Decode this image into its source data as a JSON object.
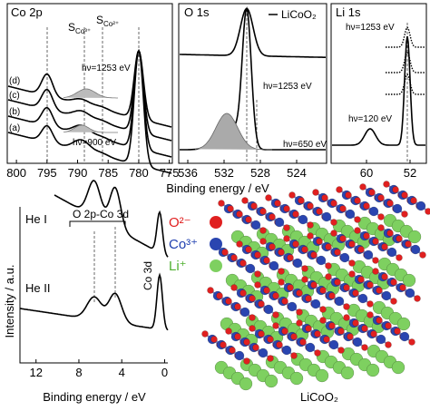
{
  "panels": [
    {
      "title": "Co 2p",
      "xlim": [
        801.5,
        774.5
      ],
      "xticks": [
        800,
        795,
        790,
        785,
        780,
        775
      ],
      "traces": [
        "(d)",
        "(c)",
        "(b)",
        "(a)"
      ],
      "energy_top": "hν=1253 eV",
      "energy_bottom": "hν=900 eV",
      "sat1": "S",
      "sat1_sub": "Co³⁺",
      "sat2": "S",
      "sat2_sub": "Co²⁺"
    },
    {
      "title": "O 1s",
      "xlim": [
        537,
        520.7
      ],
      "xticks": [
        536,
        532,
        528,
        524
      ],
      "legend": "LiCoO₂",
      "energy_top": "hν=1253 eV",
      "energy_bottom": "hν=650 eV"
    },
    {
      "title": "Li 1s",
      "xlim": [
        66.5,
        49
      ],
      "xticks": [
        60,
        52
      ],
      "energy_top": "hν=1253 eV",
      "energy_bottom": "hν=120 eV"
    }
  ],
  "top_xlabel": "Binding energy / eV",
  "valence": {
    "xlim": [
      13.5,
      -0.3
    ],
    "xticks": [
      12,
      8,
      4,
      0
    ],
    "xlabel": "Binding energy / eV",
    "ylabel": "Intensity / a.u.",
    "trace1": "He I",
    "trace2": "He II",
    "band": "O 2p-Co 3d",
    "peak": "Co 3d"
  },
  "structure": {
    "title": "LiCoO₂",
    "legend": [
      "O²⁻",
      "Co³⁺",
      "Li⁺"
    ]
  }
}
